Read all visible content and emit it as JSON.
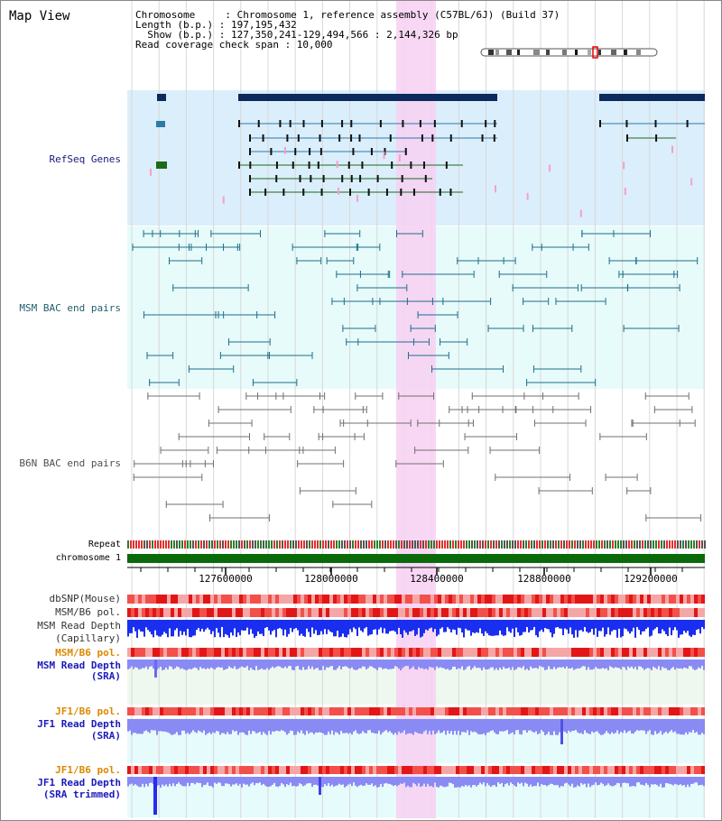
{
  "page": {
    "title": "Map View"
  },
  "info": {
    "line1": "Chromosome     : Chromosome 1, reference assembly (C57BL/6J) (Build 37)",
    "line2": "Length (b.p.) : 197,195,432",
    "line3": "  Show (b.p.) : 127,350,241-129,494,566 : 2,144,326 bp",
    "line4": "Read coverage check span : 10,000"
  },
  "tracks": {
    "refseq": "RefSeq Genes",
    "msm_bac": "MSM BAC end pairs",
    "b6n_bac": "B6N BAC end pairs",
    "repeat": "Repeat",
    "chromosome": "chromosome 1",
    "dbsnp": "dbSNP(Mouse)",
    "msmb6_pol": "MSM/B6 pol.",
    "msm_depth_cap_1": "MSM Read Depth",
    "msm_depth_cap_2": "(Capillary)",
    "msmb6_pol2": "MSM/B6 pol.",
    "msm_depth_sra_1": "MSM Read Depth",
    "msm_depth_sra_2": "(SRA)",
    "jf1_pol": "JF1/B6 pol.",
    "jf1_depth_1": "JF1 Read Depth",
    "jf1_depth_2": "(SRA)",
    "jf1_pol2": "JF1/B6 pol.",
    "jf1_trim_1": "JF1 Read Depth",
    "jf1_trim_2": "(SRA trimmed)"
  },
  "axis": {
    "ticks": [
      "127600000",
      "128000000",
      "128400000",
      "128800000",
      "129200000"
    ]
  },
  "colors": {
    "highlight": "#f7d0f2",
    "refseq_bg": "#dbeefb",
    "bac_bg": "#e6fbfa",
    "gene_dark": "#0d2a5c",
    "gene_blue": "#2d7aa8",
    "gene_green": "#1c6a1c",
    "msm_pair": "#1f6e8a",
    "b6n_pair": "#707070",
    "chrom_green": "#0a6a0a",
    "depth_blue": "#1a2ef0",
    "depth_light": "#8a8af5",
    "snp_red": "#f2504a",
    "label_navy": "#17197a",
    "label_teal": "#1f5e6e",
    "label_orange": "#dd8800",
    "label_blue": "#1a1abb"
  }
}
